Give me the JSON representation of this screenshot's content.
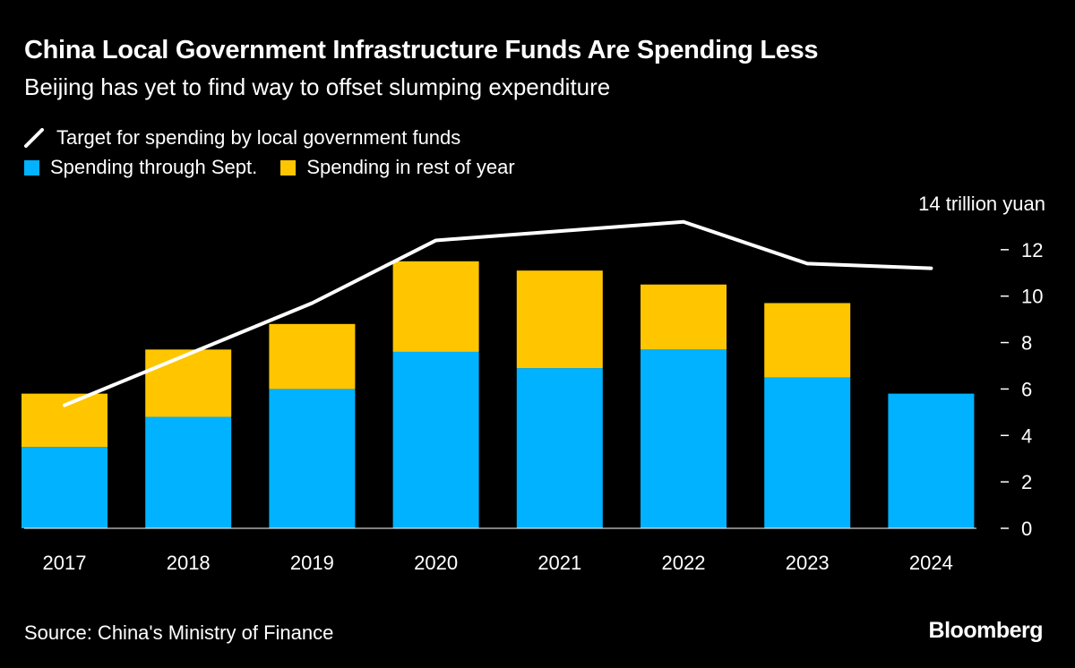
{
  "title": "China Local Government Infrastructure Funds Are Spending Less",
  "subtitle": "Beijing has yet to find way to offset slumping expenditure",
  "source": "Source: China's Ministry of Finance",
  "logo": "Bloomberg",
  "chart_data": {
    "type": "bar",
    "stacked": true,
    "categories": [
      "2017",
      "2018",
      "2019",
      "2020",
      "2021",
      "2022",
      "2023",
      "2024"
    ],
    "series": [
      {
        "name": "Spending through Sept.",
        "kind": "bar",
        "color": "#00b2ff",
        "values": [
          3.5,
          4.8,
          6.0,
          7.6,
          6.9,
          7.7,
          6.5,
          5.8
        ]
      },
      {
        "name": "Spending in rest of year",
        "kind": "bar",
        "color": "#ffc600",
        "values": [
          2.3,
          2.9,
          2.8,
          3.9,
          4.2,
          2.8,
          3.2,
          null
        ]
      },
      {
        "name": "Target for spending by local government funds",
        "kind": "line",
        "color": "#ffffff",
        "values": [
          5.3,
          7.5,
          9.7,
          12.4,
          12.8,
          13.2,
          11.4,
          11.2
        ]
      }
    ],
    "legend_order": [
      "Target for spending by local government funds",
      "Spending through Sept.",
      "Spending in rest of year"
    ],
    "ylim": [
      0,
      14
    ],
    "yticks": [
      0,
      2,
      4,
      6,
      8,
      10,
      12,
      14
    ],
    "ytick_labels": [
      "0",
      "2",
      "4",
      "6",
      "8",
      "10",
      "12",
      "14 trillion yuan"
    ],
    "yaxis_position": "right",
    "legend_position": "top-left",
    "grid": false
  }
}
